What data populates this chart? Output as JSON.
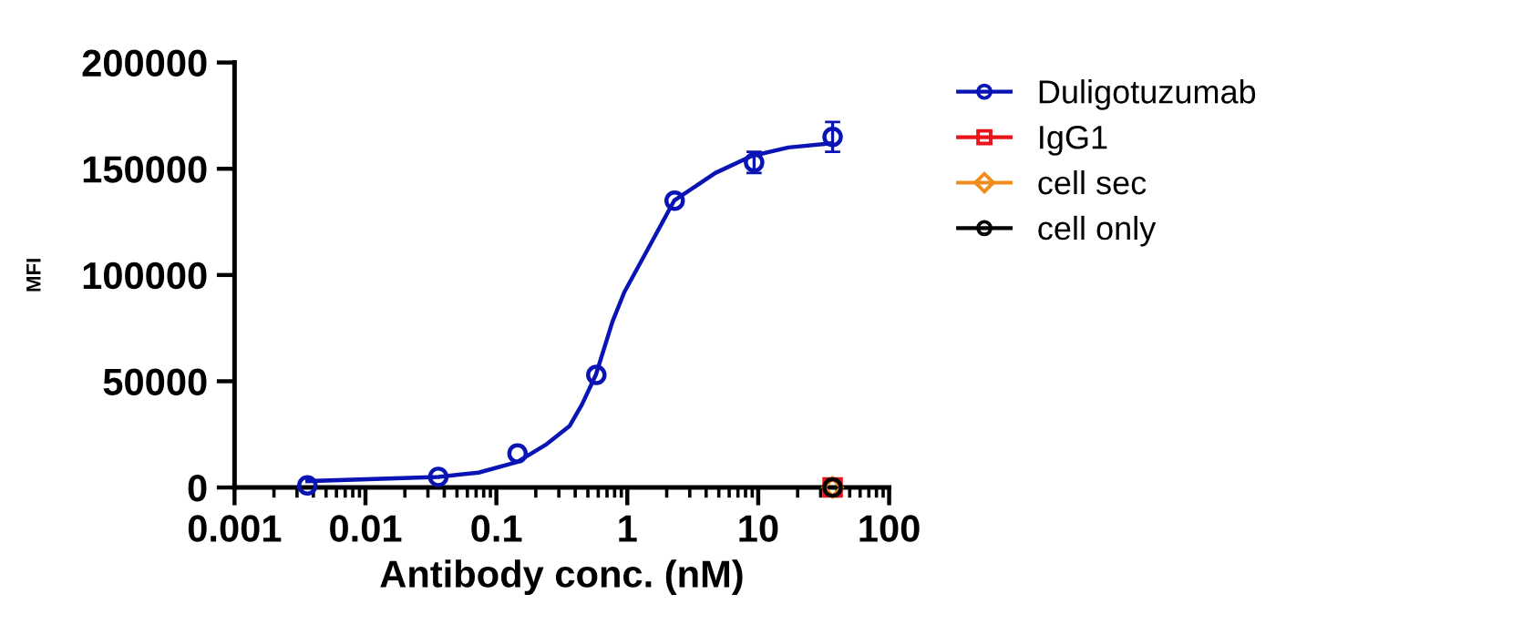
{
  "chart_data": {
    "type": "scatter",
    "xlabel": "Antibody conc. (nM)",
    "ylabel": "MFI",
    "log": "x",
    "xlim": [
      0.001,
      100
    ],
    "xticks": [
      0.001,
      0.01,
      0.1,
      1,
      10,
      100
    ],
    "ylim": [
      0,
      200000
    ],
    "yticks": [
      0,
      50000,
      100000,
      150000,
      200000
    ],
    "grid": false,
    "legend": "top right",
    "marker": "circle",
    "series": [
      {
        "name": "Duligotuzumab",
        "color": "#0a14b4",
        "x": [
          0.0036,
          0.036,
          0.145,
          0.58,
          2.3,
          9.3,
          37
        ],
        "values": [
          1000,
          5000,
          16000,
          53000,
          135000,
          153000,
          165000
        ],
        "errors": [
          null,
          null,
          null,
          null,
          null,
          5000,
          7000
        ]
      },
      {
        "color": "#0a14b4",
        "type": "line",
        "marker": "none",
        "x": [
          0.0036,
          0.036,
          0.073,
          0.144,
          0.237,
          0.363,
          0.45,
          0.575,
          0.77,
          0.95,
          1.46,
          2.28,
          4.7,
          8.9,
          17,
          36.6
        ],
        "values": [
          3000,
          5000,
          7000,
          12000,
          20000,
          29000,
          39000,
          53000,
          78000,
          92000,
          113000,
          135000,
          148000,
          156000,
          160000,
          162000
        ]
      },
      {
        "name": "IgG1",
        "color": "#e8141c",
        "marker": "square",
        "x": [
          37
        ],
        "values": [
          0
        ]
      },
      {
        "name": "cell sec",
        "color": "#f08c1c",
        "marker": "diamond",
        "x": [
          37
        ],
        "values": [
          0
        ]
      },
      {
        "name": "cell only",
        "color": "#000000",
        "x": [
          37
        ],
        "values": [
          0
        ]
      }
    ]
  }
}
